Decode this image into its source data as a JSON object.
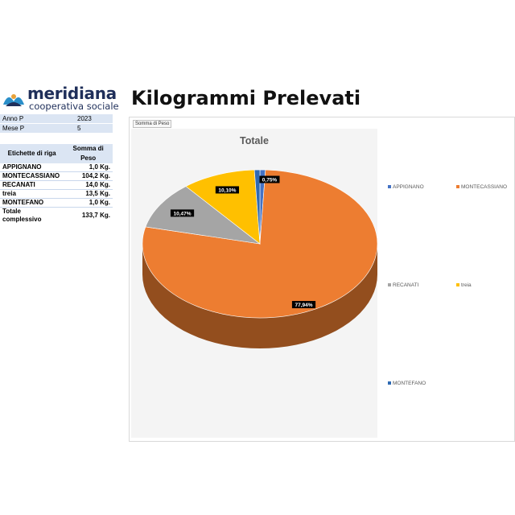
{
  "brand": {
    "name": "meridiana",
    "subtitle": "cooperativa sociale"
  },
  "page_title": "Kilogrammi Prelevati",
  "filters": [
    {
      "label": "Anno P",
      "value": "2023"
    },
    {
      "label": "Mese P",
      "value": "5"
    }
  ],
  "pivot": {
    "row_header": "Etichette di riga",
    "value_header": "Somma di Peso",
    "rows": [
      {
        "label": "APPIGNANO",
        "value": "1,0 Kg."
      },
      {
        "label": "MONTECASSIANO",
        "value": "104,2 Kg."
      },
      {
        "label": "RECANATI",
        "value": "14,0 Kg."
      },
      {
        "label": "treia",
        "value": "13,5 Kg."
      },
      {
        "label": "MONTEFANO",
        "value": "1,0 Kg."
      }
    ],
    "total_label": "Totale complessivo",
    "total_value": "133,7 Kg."
  },
  "chart": {
    "field_button": "Somma di Peso",
    "colors": {
      "APPIGNANO": "#4472c4",
      "MONTECASSIANO": "#ed7d31",
      "RECANATI": "#a5a5a5",
      "treia": "#ffc000",
      "MONTEFANO": "#2e6ab3"
    }
  },
  "chart_data": {
    "type": "pie",
    "title": "Totale",
    "categories": [
      "APPIGNANO",
      "MONTECASSIANO",
      "RECANATI",
      "treia",
      "MONTEFANO"
    ],
    "values": [
      1.0,
      104.2,
      14.0,
      13.5,
      1.0
    ],
    "labels": [
      "",
      "77,94%",
      "10,47%",
      "10,10%",
      "0,75%"
    ],
    "legend_position": "right"
  }
}
